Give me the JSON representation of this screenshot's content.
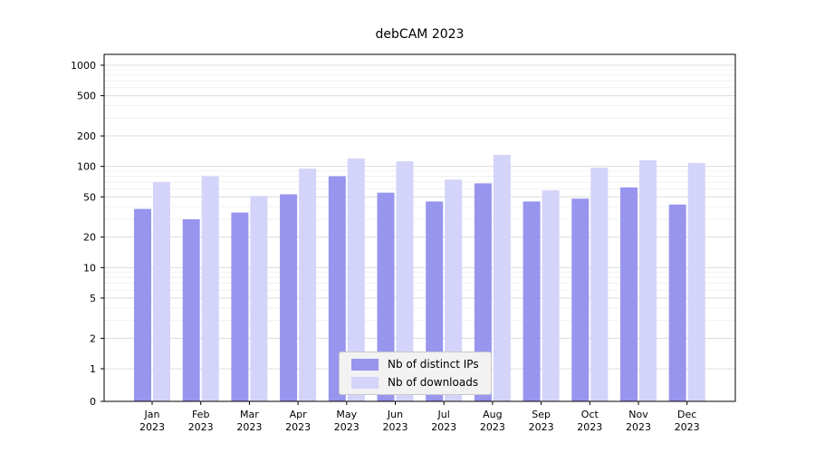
{
  "chart_data": {
    "type": "bar",
    "title": "debCAM 2023",
    "categories": [
      "Jan",
      "Feb",
      "Mar",
      "Apr",
      "May",
      "Jun",
      "Jul",
      "Aug",
      "Sep",
      "Oct",
      "Nov",
      "Dec"
    ],
    "year_label": "2023",
    "series": [
      {
        "name": "Nb of distinct IPs",
        "color": "#9795ee",
        "values": [
          38,
          30,
          35,
          53,
          80,
          55,
          45,
          68,
          45,
          48,
          62,
          42
        ]
      },
      {
        "name": "Nb of downloads",
        "color": "#d4d3f9",
        "values": [
          70,
          80,
          51,
          95,
          120,
          112,
          74,
          130,
          58,
          97,
          115,
          108
        ]
      }
    ],
    "yscale": "log-with-zero-baseline",
    "yticks": [
      1000,
      500,
      200,
      100,
      50,
      20,
      10,
      5,
      2,
      1,
      0
    ],
    "ylim": [
      0,
      1000
    ],
    "grid": "horizontal major gridlines plus faint log minor gridlines",
    "legend_position": "bottom-center-inside"
  }
}
